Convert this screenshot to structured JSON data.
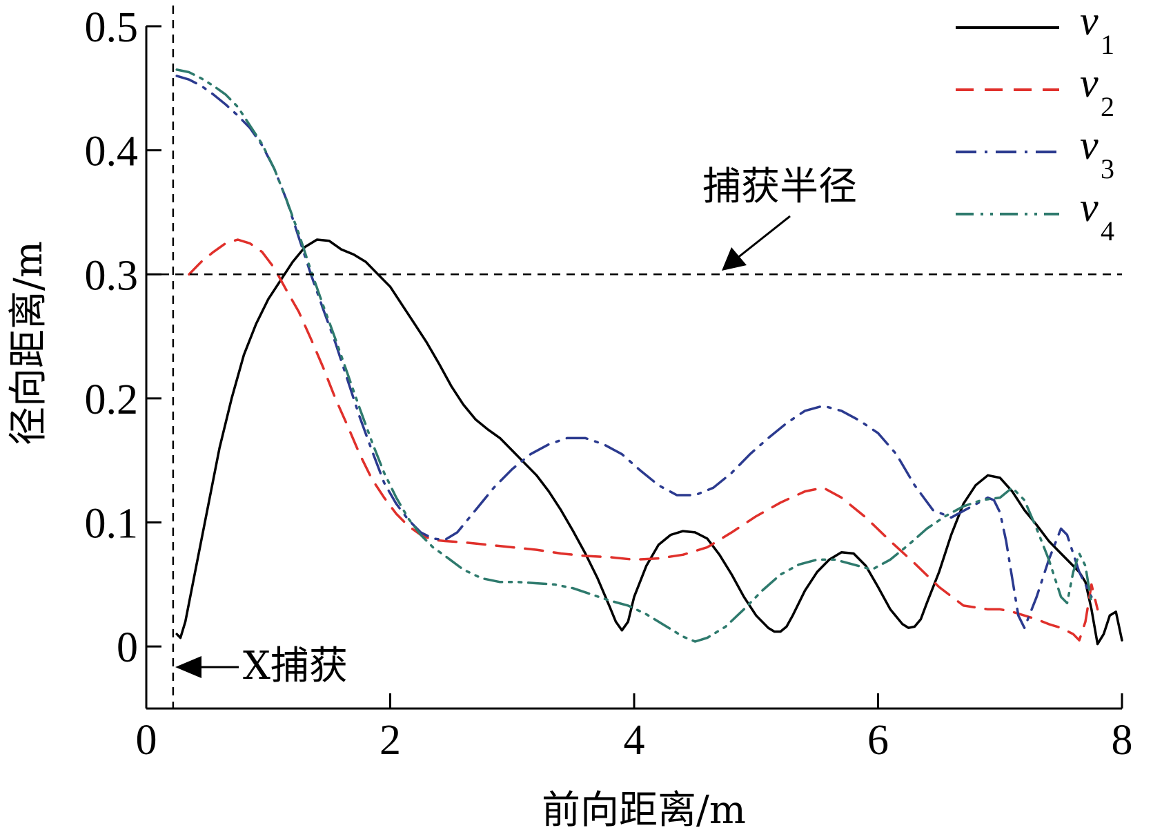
{
  "chart_data": {
    "type": "line",
    "xlabel": "前向距离/m",
    "ylabel": "径向距离/m",
    "xlim": [
      0,
      8
    ],
    "ylim": [
      -0.05,
      0.5
    ],
    "xticks": [
      0,
      2,
      4,
      6,
      8
    ],
    "xtick_labels": [
      "0",
      "2",
      "4",
      "6",
      "8"
    ],
    "yticks": [
      0,
      0.1,
      0.2,
      0.3,
      0.4,
      0.5
    ],
    "ytick_labels": [
      "0",
      "0.1",
      "0.2",
      "0.3",
      "0.4",
      "0.5"
    ],
    "grid": false,
    "legend_position": "top-right",
    "reference_lines": {
      "capture_radius_y": 0.3,
      "capture_x": 0.22
    },
    "annotations": {
      "capture_radius_label": "捕获半径",
      "x_capture_label": "X捕获"
    },
    "series": [
      {
        "name": "v1",
        "base": "v",
        "sub": "1",
        "color": "#000000",
        "dash": "solid",
        "x": [
          0.25,
          0.28,
          0.32,
          0.4,
          0.5,
          0.6,
          0.7,
          0.8,
          0.9,
          1.0,
          1.1,
          1.2,
          1.3,
          1.4,
          1.5,
          1.6,
          1.7,
          1.8,
          1.9,
          2.0,
          2.1,
          2.2,
          2.3,
          2.4,
          2.5,
          2.6,
          2.7,
          2.8,
          2.9,
          3.0,
          3.1,
          3.2,
          3.3,
          3.4,
          3.5,
          3.6,
          3.7,
          3.8,
          3.85,
          3.9,
          3.95,
          4.0,
          4.1,
          4.2,
          4.3,
          4.4,
          4.5,
          4.6,
          4.7,
          4.8,
          4.9,
          5.0,
          5.1,
          5.15,
          5.2,
          5.25,
          5.3,
          5.4,
          5.5,
          5.6,
          5.7,
          5.8,
          5.9,
          6.0,
          6.1,
          6.2,
          6.25,
          6.3,
          6.35,
          6.4,
          6.5,
          6.6,
          6.7,
          6.8,
          6.9,
          7.0,
          7.1,
          7.2,
          7.3,
          7.4,
          7.5,
          7.6,
          7.65,
          7.7,
          7.75,
          7.8,
          7.85,
          7.9,
          7.95,
          8.0
        ],
        "y": [
          0.01,
          0.007,
          0.02,
          0.06,
          0.11,
          0.16,
          0.2,
          0.235,
          0.26,
          0.28,
          0.295,
          0.31,
          0.322,
          0.328,
          0.327,
          0.32,
          0.316,
          0.31,
          0.3,
          0.29,
          0.275,
          0.26,
          0.245,
          0.228,
          0.21,
          0.195,
          0.183,
          0.175,
          0.168,
          0.158,
          0.148,
          0.138,
          0.125,
          0.11,
          0.093,
          0.075,
          0.055,
          0.032,
          0.02,
          0.013,
          0.02,
          0.04,
          0.065,
          0.082,
          0.09,
          0.093,
          0.092,
          0.087,
          0.074,
          0.058,
          0.04,
          0.025,
          0.015,
          0.012,
          0.012,
          0.016,
          0.025,
          0.045,
          0.06,
          0.07,
          0.076,
          0.075,
          0.065,
          0.048,
          0.03,
          0.018,
          0.015,
          0.016,
          0.022,
          0.035,
          0.06,
          0.09,
          0.115,
          0.13,
          0.138,
          0.136,
          0.125,
          0.11,
          0.098,
          0.085,
          0.075,
          0.065,
          0.06,
          0.052,
          0.03,
          0.002,
          0.01,
          0.025,
          0.028,
          0.005
        ]
      },
      {
        "name": "v2",
        "base": "v",
        "sub": "2",
        "color": "#e0302b",
        "dash": "dashed",
        "x": [
          0.35,
          0.45,
          0.55,
          0.65,
          0.75,
          0.85,
          0.95,
          1.05,
          1.15,
          1.25,
          1.35,
          1.45,
          1.55,
          1.65,
          1.75,
          1.85,
          1.95,
          2.05,
          2.15,
          2.25,
          2.35,
          2.45,
          2.6,
          2.8,
          3.0,
          3.2,
          3.4,
          3.6,
          3.8,
          4.0,
          4.2,
          4.4,
          4.6,
          4.8,
          5.0,
          5.2,
          5.4,
          5.55,
          5.7,
          5.9,
          6.1,
          6.3,
          6.5,
          6.7,
          6.9,
          7.0,
          7.1,
          7.2,
          7.3,
          7.4,
          7.5,
          7.6,
          7.65,
          7.7,
          7.75,
          7.8
        ],
        "y": [
          0.3,
          0.31,
          0.318,
          0.325,
          0.328,
          0.325,
          0.318,
          0.305,
          0.287,
          0.27,
          0.248,
          0.225,
          0.2,
          0.178,
          0.155,
          0.135,
          0.12,
          0.107,
          0.097,
          0.09,
          0.086,
          0.085,
          0.084,
          0.082,
          0.08,
          0.078,
          0.075,
          0.073,
          0.072,
          0.07,
          0.071,
          0.074,
          0.08,
          0.092,
          0.105,
          0.116,
          0.125,
          0.128,
          0.12,
          0.104,
          0.085,
          0.067,
          0.048,
          0.033,
          0.03,
          0.03,
          0.028,
          0.025,
          0.022,
          0.018,
          0.015,
          0.01,
          0.005,
          0.02,
          0.05,
          0.03
        ]
      },
      {
        "name": "v3",
        "base": "v",
        "sub": "3",
        "color": "#2b3a8f",
        "dash": "dashdot",
        "x": [
          0.25,
          0.35,
          0.45,
          0.55,
          0.65,
          0.75,
          0.85,
          0.95,
          1.05,
          1.15,
          1.25,
          1.35,
          1.45,
          1.55,
          1.65,
          1.75,
          1.85,
          1.95,
          2.05,
          2.15,
          2.25,
          2.35,
          2.45,
          2.55,
          2.7,
          2.85,
          3.0,
          3.15,
          3.3,
          3.45,
          3.6,
          3.75,
          3.9,
          4.05,
          4.2,
          4.35,
          4.5,
          4.65,
          4.8,
          4.95,
          5.1,
          5.25,
          5.4,
          5.55,
          5.7,
          5.85,
          6.0,
          6.15,
          6.3,
          6.45,
          6.6,
          6.75,
          6.9,
          6.95,
          7.0,
          7.05,
          7.1,
          7.15,
          7.2,
          7.3,
          7.4,
          7.5,
          7.55,
          7.6,
          7.65,
          7.7,
          7.75
        ],
        "y": [
          0.46,
          0.457,
          0.452,
          0.445,
          0.437,
          0.428,
          0.418,
          0.404,
          0.385,
          0.36,
          0.33,
          0.3,
          0.272,
          0.245,
          0.215,
          0.185,
          0.158,
          0.132,
          0.115,
          0.102,
          0.092,
          0.087,
          0.086,
          0.092,
          0.11,
          0.128,
          0.143,
          0.155,
          0.163,
          0.168,
          0.168,
          0.163,
          0.155,
          0.142,
          0.13,
          0.122,
          0.122,
          0.128,
          0.14,
          0.155,
          0.168,
          0.18,
          0.19,
          0.194,
          0.19,
          0.182,
          0.172,
          0.155,
          0.13,
          0.11,
          0.104,
          0.112,
          0.12,
          0.118,
          0.108,
          0.085,
          0.055,
          0.025,
          0.015,
          0.04,
          0.07,
          0.095,
          0.09,
          0.075,
          0.06,
          0.05,
          0.04
        ]
      },
      {
        "name": "v4",
        "base": "v",
        "sub": "4",
        "color": "#2e7a6d",
        "dash": "dashdotdot",
        "x": [
          0.25,
          0.35,
          0.45,
          0.55,
          0.65,
          0.75,
          0.85,
          0.95,
          1.05,
          1.15,
          1.25,
          1.35,
          1.45,
          1.55,
          1.65,
          1.75,
          1.85,
          1.95,
          2.05,
          2.15,
          2.25,
          2.35,
          2.45,
          2.6,
          2.75,
          2.9,
          3.05,
          3.2,
          3.35,
          3.5,
          3.65,
          3.8,
          3.95,
          4.1,
          4.25,
          4.4,
          4.5,
          4.6,
          4.75,
          4.9,
          5.05,
          5.2,
          5.35,
          5.5,
          5.65,
          5.8,
          5.95,
          6.1,
          6.25,
          6.4,
          6.55,
          6.7,
          6.85,
          7.0,
          7.1,
          7.2,
          7.3,
          7.4,
          7.5,
          7.55,
          7.6,
          7.65,
          7.7,
          7.75
        ],
        "y": [
          0.465,
          0.463,
          0.458,
          0.452,
          0.445,
          0.435,
          0.42,
          0.405,
          0.385,
          0.36,
          0.333,
          0.303,
          0.275,
          0.248,
          0.22,
          0.192,
          0.165,
          0.14,
          0.12,
          0.103,
          0.09,
          0.08,
          0.073,
          0.062,
          0.055,
          0.052,
          0.052,
          0.051,
          0.05,
          0.047,
          0.042,
          0.037,
          0.033,
          0.026,
          0.017,
          0.008,
          0.004,
          0.007,
          0.016,
          0.03,
          0.045,
          0.058,
          0.066,
          0.07,
          0.07,
          0.066,
          0.062,
          0.07,
          0.082,
          0.095,
          0.105,
          0.113,
          0.118,
          0.12,
          0.128,
          0.118,
          0.095,
          0.07,
          0.04,
          0.035,
          0.06,
          0.075,
          0.065,
          0.035
        ]
      }
    ]
  }
}
